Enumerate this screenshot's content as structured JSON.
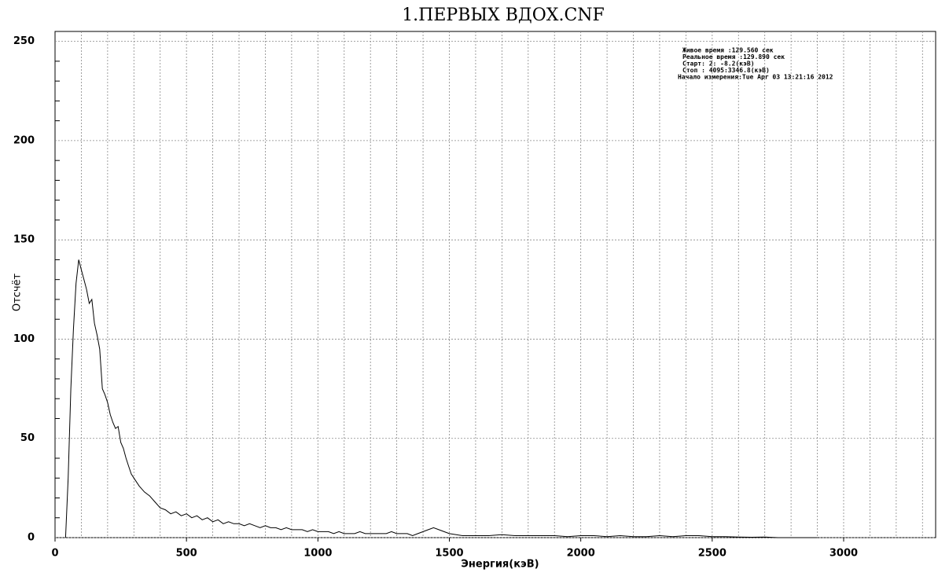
{
  "chart_data": {
    "type": "line",
    "title": "1.ПЕРВЫХ ВДОХ.CNF",
    "xlabel": "Энергия(кэВ)",
    "ylabel": "Отсчёт",
    "annotations": [
      "Живое время  :129.560 сек",
      "Реальное время  :129.890 сек",
      "Старт:    2:  -8.2(кэВ)",
      "Стоп : 4095:3346.8(кэВ)",
      "Начало измерения:Tue Apr 03 13:21:16 2012"
    ],
    "x": [
      40,
      50,
      60,
      70,
      80,
      90,
      100,
      110,
      120,
      130,
      140,
      150,
      160,
      170,
      180,
      190,
      200,
      210,
      220,
      230,
      240,
      250,
      260,
      270,
      280,
      290,
      300,
      320,
      340,
      360,
      380,
      400,
      420,
      440,
      460,
      480,
      500,
      520,
      540,
      560,
      580,
      600,
      620,
      640,
      660,
      680,
      700,
      720,
      740,
      760,
      780,
      800,
      820,
      840,
      860,
      880,
      900,
      920,
      940,
      960,
      980,
      1000,
      1020,
      1040,
      1060,
      1080,
      1100,
      1120,
      1140,
      1160,
      1180,
      1200,
      1220,
      1240,
      1260,
      1280,
      1300,
      1320,
      1340,
      1360,
      1380,
      1400,
      1420,
      1440,
      1460,
      1480,
      1500,
      1550,
      1600,
      1650,
      1700,
      1750,
      1800,
      1850,
      1900,
      1950,
      2000,
      2050,
      2100,
      2150,
      2200,
      2250,
      2300,
      2350,
      2400,
      2450,
      2500,
      2550,
      2600,
      2650,
      2700,
      2750,
      2800,
      2850,
      2900
    ],
    "series": [
      {
        "name": "Отсчёт",
        "color": "#000000",
        "values": [
          0,
          30,
          75,
          105,
          128,
          140,
          135,
          130,
          125,
          118,
          120,
          108,
          102,
          95,
          75,
          72,
          68,
          62,
          58,
          55,
          56,
          48,
          45,
          40,
          36,
          32,
          30,
          26,
          23,
          21,
          18,
          15,
          14,
          12,
          13,
          11,
          12,
          10,
          11,
          9,
          10,
          8,
          9,
          7,
          8,
          7,
          7,
          6,
          7,
          6,
          5,
          6,
          5,
          5,
          4,
          5,
          4,
          4,
          4,
          3,
          4,
          3,
          3,
          3,
          2,
          3,
          2,
          2,
          2,
          3,
          2,
          2,
          2,
          2,
          2,
          3,
          2,
          2,
          2,
          1,
          2,
          3,
          4,
          5,
          4,
          3,
          2,
          1,
          1,
          1,
          1.5,
          1,
          1,
          1,
          1,
          0.5,
          1,
          1,
          0.5,
          1,
          0.5,
          0.5,
          1,
          0.5,
          1,
          1,
          0.5,
          0.5,
          0.3,
          0.2,
          0.3,
          0,
          0,
          0,
          0
        ]
      }
    ],
    "xlim": [
      0,
      3350
    ],
    "ylim": [
      0,
      255
    ],
    "xticks": [
      0,
      500,
      1000,
      1500,
      2000,
      2500,
      3000
    ],
    "yticks": [
      0,
      50,
      100,
      150,
      200,
      250
    ],
    "xgrid": [
      100,
      200,
      300,
      400,
      500,
      600,
      700,
      800,
      900,
      1000,
      1100,
      1200,
      1300,
      1400,
      1500,
      1600,
      1700,
      1800,
      1900,
      2000,
      2100,
      2200,
      2300,
      2400,
      2500,
      2600,
      2700,
      2800,
      2900,
      3000,
      3100,
      3200,
      3300
    ],
    "yminor": [
      10,
      20,
      30,
      40,
      60,
      70,
      80,
      90,
      110,
      120,
      130,
      140,
      160,
      170,
      180,
      190,
      210,
      220,
      230,
      240
    ],
    "grid": true
  }
}
